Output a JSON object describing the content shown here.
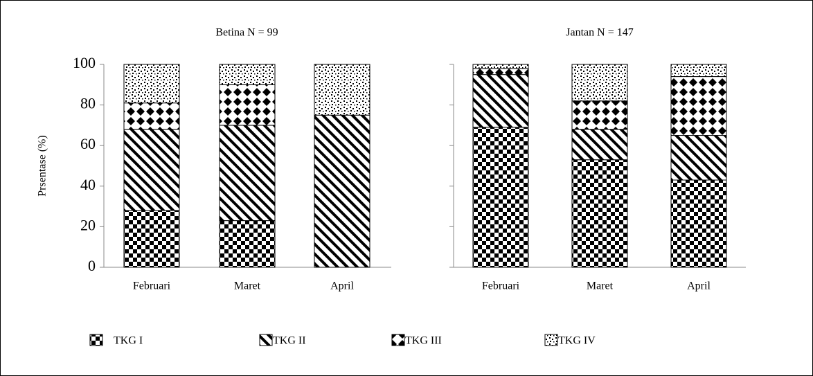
{
  "chart_data": [
    {
      "type": "bar",
      "stacked": true,
      "title": "Betina N = 99",
      "ylabel": "Prsentase (%)",
      "categories": [
        "Februari",
        "Maret",
        "April"
      ],
      "ylim": [
        0,
        100
      ],
      "yticks": [
        0,
        20,
        40,
        60,
        80,
        100
      ],
      "series": [
        {
          "name": "TKG I",
          "pattern": "checker",
          "color": "#000000",
          "values": [
            28,
            23,
            0
          ]
        },
        {
          "name": "TKG II",
          "pattern": "stripes",
          "color": "#000000",
          "values": [
            40,
            47,
            75
          ]
        },
        {
          "name": "TKG III",
          "pattern": "diamonds",
          "color": "#000000",
          "values": [
            13,
            20,
            0
          ]
        },
        {
          "name": "TKG IV",
          "pattern": "dots",
          "color": "#000000",
          "values": [
            19,
            10,
            25
          ]
        }
      ]
    },
    {
      "type": "bar",
      "stacked": true,
      "title": "Jantan N = 147",
      "categories": [
        "Februari",
        "Maret",
        "April"
      ],
      "ylim": [
        0,
        100
      ],
      "yticks": [
        0,
        20,
        40,
        60,
        80,
        100
      ],
      "series": [
        {
          "pattern": "checker",
          "color": "#000000",
          "values": [
            69,
            53,
            43
          ]
        },
        {
          "pattern": "stripes",
          "color": "#000000",
          "values": [
            26,
            15,
            22
          ]
        },
        {
          "pattern": "diamonds",
          "color": "#000000",
          "values": [
            3,
            14,
            29
          ]
        },
        {
          "pattern": "dots",
          "color": "#000000",
          "values": [
            2,
            18,
            6
          ]
        }
      ]
    }
  ]
}
